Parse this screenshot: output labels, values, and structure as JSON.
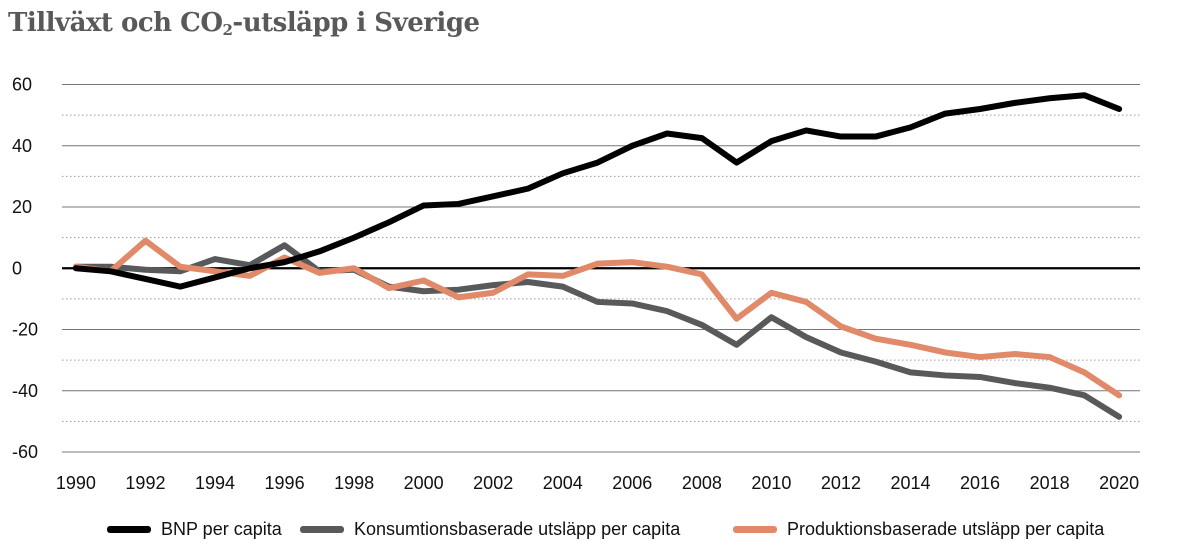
{
  "title_main": "Tillväxt och CO",
  "title_sub": "2",
  "title_rest": "-utsläpp i Sverige",
  "colors": {
    "bnp": "#000000",
    "konsumtion": "#58595b",
    "produktion": "#e08a69",
    "grid": "#777777",
    "zero": "#000000"
  },
  "chart_data": {
    "type": "line",
    "title": "Tillväxt och CO2-utsläpp i Sverige",
    "x": [
      1990,
      1991,
      1992,
      1993,
      1994,
      1995,
      1996,
      1997,
      1998,
      1999,
      2000,
      2001,
      2002,
      2003,
      2004,
      2005,
      2006,
      2007,
      2008,
      2009,
      2010,
      2011,
      2012,
      2013,
      2014,
      2015,
      2016,
      2017,
      2018,
      2019,
      2020
    ],
    "x_ticks": [
      "1990",
      "1992",
      "1994",
      "1996",
      "1998",
      "2000",
      "2002",
      "2004",
      "2006",
      "2008",
      "2010",
      "2012",
      "2014",
      "2016",
      "2018",
      "2020"
    ],
    "y_ticks": [
      "60",
      "40",
      "20",
      "0",
      "-20",
      "-40",
      "-60"
    ],
    "ylim": [
      -60,
      60
    ],
    "xlim": [
      1989.6,
      2020.6
    ],
    "grid": true,
    "legend_position": "bottom",
    "series": [
      {
        "name": "BNP per capita",
        "color": "#000000",
        "values": [
          0,
          -1,
          -3.5,
          -6,
          -3,
          0,
          2,
          5.5,
          10,
          15,
          20.5,
          21,
          23.5,
          26,
          31,
          34.5,
          40,
          44,
          42.5,
          34.5,
          41.5,
          45,
          43,
          43,
          46,
          50.5,
          52,
          54,
          55.5,
          56.5,
          52
        ]
      },
      {
        "name": "Konsumtionsbaserade utsläpp per capita",
        "color": "#58595b",
        "values": [
          0.5,
          0.5,
          -0.5,
          -1,
          3,
          1,
          7.5,
          -1,
          -0.5,
          -6,
          -7.5,
          -7,
          -5.5,
          -4.5,
          -6,
          -11,
          -11.5,
          -14,
          -18.5,
          -25,
          -16,
          -22.5,
          -27.5,
          -30.5,
          -34,
          -35,
          -35.5,
          -37.5,
          -39,
          -41.5,
          -48.5
        ]
      },
      {
        "name": "Produktionsbaserade utsläpp per capita",
        "color": "#e08a69",
        "values": [
          0.5,
          -1,
          9,
          0.5,
          -1,
          -2.5,
          3.5,
          -1.5,
          0,
          -6.5,
          -4,
          -9.5,
          -8,
          -2,
          -2.5,
          1.5,
          2,
          0.5,
          -2,
          -16.5,
          -8,
          -11,
          -19,
          -23,
          -25,
          -27.5,
          -29,
          -28,
          -29,
          -34,
          -41.5
        ]
      }
    ]
  },
  "legend": [
    {
      "label": "BNP per capita",
      "color": "#000000"
    },
    {
      "label": "Konsumtionsbaserade utsläpp per capita",
      "color": "#58595b"
    },
    {
      "label": "Produktionsbaserade utsläpp per capita",
      "color": "#e08a69"
    }
  ]
}
